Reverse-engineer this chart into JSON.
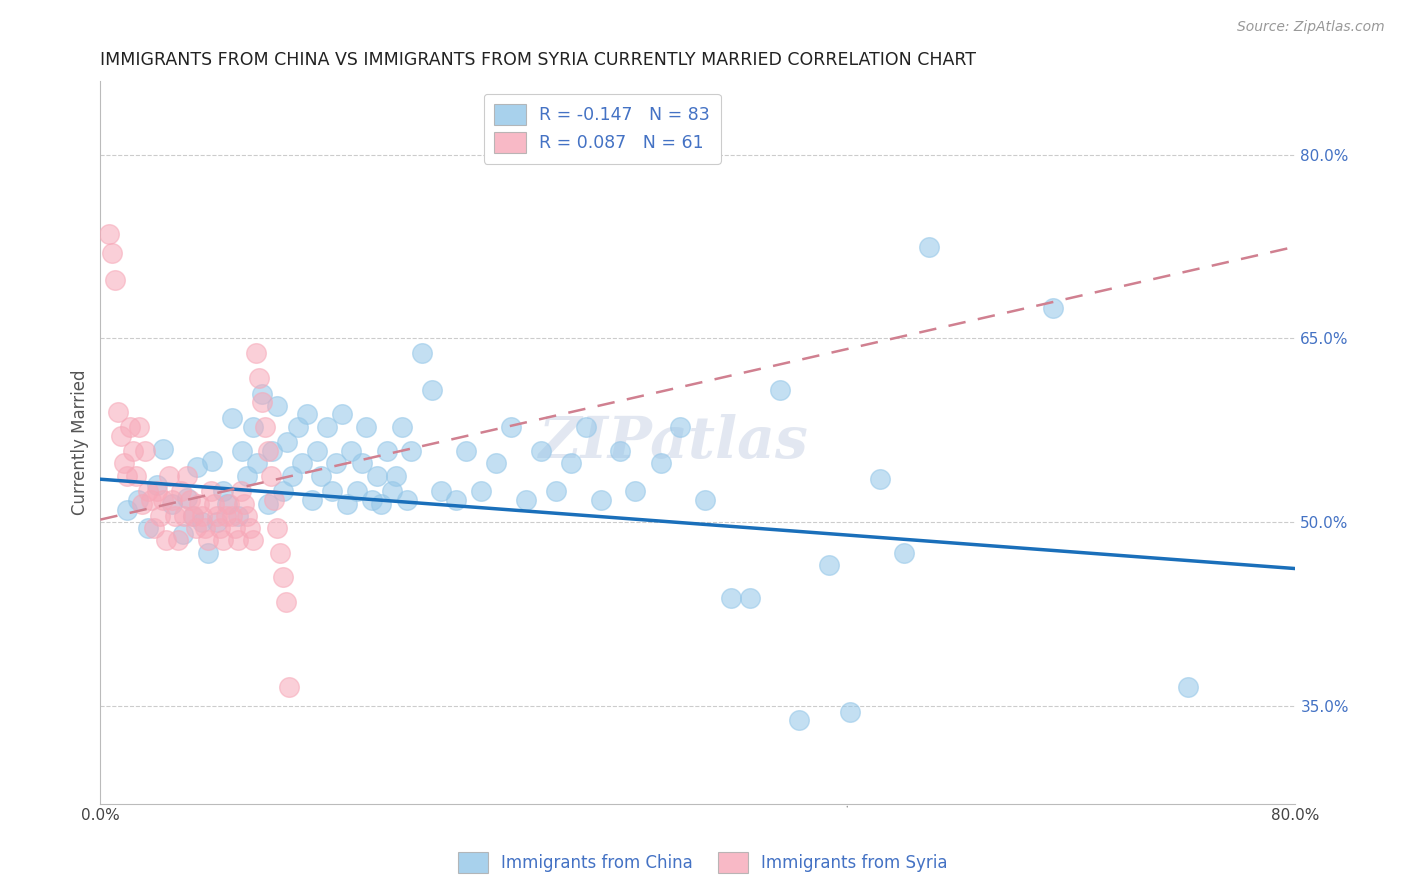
{
  "title": "IMMIGRANTS FROM CHINA VS IMMIGRANTS FROM SYRIA CURRENTLY MARRIED CORRELATION CHART",
  "source": "Source: ZipAtlas.com",
  "ylabel": "Currently Married",
  "xlim": [
    0.0,
    0.8
  ],
  "ylim": [
    0.27,
    0.86
  ],
  "yticks": [
    0.35,
    0.5,
    0.65,
    0.8
  ],
  "ytick_labels": [
    "35.0%",
    "50.0%",
    "65.0%",
    "80.0%"
  ],
  "xticks": [
    0.0,
    0.1,
    0.2,
    0.3,
    0.4,
    0.5,
    0.6,
    0.7,
    0.8
  ],
  "xtick_labels": [
    "0.0%",
    "",
    "",
    "",
    "",
    "",
    "",
    "",
    "80.0%"
  ],
  "china_color": "#93c6e8",
  "syria_color": "#f7a8b8",
  "china_line_color": "#1a6fba",
  "syria_line_color": "#d08090",
  "china_r": -0.147,
  "china_n": 83,
  "syria_r": 0.087,
  "syria_n": 61,
  "watermark": "ZIPatlas",
  "china_tline_x0": 0.0,
  "china_tline_y0": 0.535,
  "china_tline_x1": 0.8,
  "china_tline_y1": 0.462,
  "syria_tline_x0": 0.0,
  "syria_tline_y0": 0.502,
  "syria_tline_x1": 0.8,
  "syria_tline_y1": 0.725,
  "china_x": [
    0.018,
    0.025,
    0.032,
    0.038,
    0.042,
    0.048,
    0.055,
    0.058,
    0.062,
    0.065,
    0.068,
    0.072,
    0.075,
    0.078,
    0.082,
    0.085,
    0.088,
    0.092,
    0.095,
    0.098,
    0.102,
    0.105,
    0.108,
    0.112,
    0.115,
    0.118,
    0.122,
    0.125,
    0.128,
    0.132,
    0.135,
    0.138,
    0.142,
    0.145,
    0.148,
    0.152,
    0.155,
    0.158,
    0.162,
    0.165,
    0.168,
    0.172,
    0.175,
    0.178,
    0.182,
    0.185,
    0.188,
    0.192,
    0.195,
    0.198,
    0.202,
    0.205,
    0.208,
    0.215,
    0.222,
    0.228,
    0.238,
    0.245,
    0.255,
    0.265,
    0.275,
    0.285,
    0.295,
    0.305,
    0.315,
    0.325,
    0.335,
    0.348,
    0.358,
    0.375,
    0.388,
    0.405,
    0.422,
    0.435,
    0.455,
    0.468,
    0.488,
    0.502,
    0.522,
    0.538,
    0.555,
    0.638,
    0.728
  ],
  "china_y": [
    0.51,
    0.518,
    0.495,
    0.53,
    0.56,
    0.515,
    0.49,
    0.52,
    0.505,
    0.545,
    0.5,
    0.475,
    0.55,
    0.5,
    0.525,
    0.515,
    0.585,
    0.505,
    0.558,
    0.538,
    0.578,
    0.548,
    0.605,
    0.515,
    0.558,
    0.595,
    0.525,
    0.565,
    0.538,
    0.578,
    0.548,
    0.588,
    0.518,
    0.558,
    0.538,
    0.578,
    0.525,
    0.548,
    0.588,
    0.515,
    0.558,
    0.525,
    0.548,
    0.578,
    0.518,
    0.538,
    0.515,
    0.558,
    0.525,
    0.538,
    0.578,
    0.518,
    0.558,
    0.638,
    0.608,
    0.525,
    0.518,
    0.558,
    0.525,
    0.548,
    0.578,
    0.518,
    0.558,
    0.525,
    0.548,
    0.578,
    0.518,
    0.558,
    0.525,
    0.548,
    0.578,
    0.518,
    0.438,
    0.438,
    0.608,
    0.338,
    0.465,
    0.345,
    0.535,
    0.475,
    0.725,
    0.675,
    0.365
  ],
  "syria_x": [
    0.006,
    0.008,
    0.01,
    0.012,
    0.014,
    0.016,
    0.018,
    0.02,
    0.022,
    0.024,
    0.026,
    0.028,
    0.03,
    0.032,
    0.034,
    0.036,
    0.038,
    0.04,
    0.042,
    0.044,
    0.046,
    0.048,
    0.05,
    0.052,
    0.054,
    0.056,
    0.058,
    0.06,
    0.062,
    0.064,
    0.066,
    0.068,
    0.07,
    0.072,
    0.074,
    0.076,
    0.078,
    0.08,
    0.082,
    0.084,
    0.086,
    0.088,
    0.09,
    0.092,
    0.094,
    0.096,
    0.098,
    0.1,
    0.102,
    0.104,
    0.106,
    0.108,
    0.11,
    0.112,
    0.114,
    0.116,
    0.118,
    0.12,
    0.122,
    0.124,
    0.126
  ],
  "syria_y": [
    0.735,
    0.72,
    0.698,
    0.59,
    0.57,
    0.548,
    0.538,
    0.578,
    0.558,
    0.538,
    0.578,
    0.515,
    0.558,
    0.525,
    0.518,
    0.495,
    0.525,
    0.505,
    0.518,
    0.485,
    0.538,
    0.518,
    0.505,
    0.485,
    0.525,
    0.505,
    0.538,
    0.518,
    0.505,
    0.495,
    0.515,
    0.505,
    0.495,
    0.485,
    0.525,
    0.515,
    0.505,
    0.495,
    0.485,
    0.505,
    0.515,
    0.505,
    0.495,
    0.485,
    0.525,
    0.515,
    0.505,
    0.495,
    0.485,
    0.638,
    0.618,
    0.598,
    0.578,
    0.558,
    0.538,
    0.518,
    0.495,
    0.475,
    0.455,
    0.435,
    0.365
  ]
}
